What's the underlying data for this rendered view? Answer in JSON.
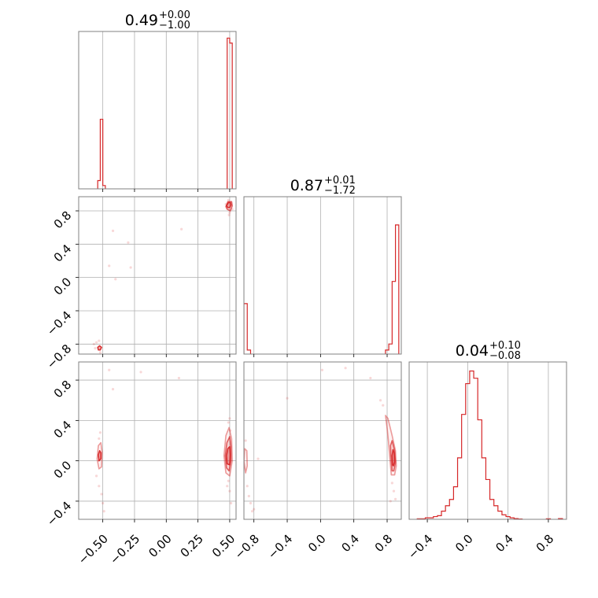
{
  "chart_data": {
    "type": "corner",
    "color": "#d62728",
    "grid": true,
    "parameters": [
      {
        "id": "p0",
        "title": {
          "median": "0.49",
          "plus": "+0.00",
          "minus": "−1.00"
        },
        "range": [
          -0.69,
          0.55
        ],
        "ticks": [
          {
            "value": -0.5,
            "label": "−0.50"
          },
          {
            "value": -0.25,
            "label": "−0.25"
          },
          {
            "value": 0.0,
            "label": "0.00"
          },
          {
            "value": 0.25,
            "label": "0.25"
          },
          {
            "value": 0.5,
            "label": "0.50"
          }
        ],
        "hist": {
          "bins": [
            [
              -0.54,
              -0.52,
              0.05
            ],
            [
              -0.52,
              -0.5,
              0.42
            ],
            [
              -0.5,
              -0.48,
              0.02
            ],
            [
              0.48,
              0.5,
              0.91
            ],
            [
              0.5,
              0.52,
              0.88
            ]
          ],
          "ymax": 0.95
        }
      },
      {
        "id": "p1",
        "title": {
          "median": "0.87",
          "plus": "+0.01",
          "minus": "−1.72"
        },
        "range": [
          -0.92,
          0.97
        ],
        "ticks": [
          {
            "value": -0.8,
            "label": "−0.8"
          },
          {
            "value": -0.4,
            "label": "−0.4"
          },
          {
            "value": 0.0,
            "label": "0.0"
          },
          {
            "value": 0.4,
            "label": "0.4"
          },
          {
            "value": 0.8,
            "label": "0.8"
          }
        ],
        "hist": {
          "bins": [
            [
              -0.92,
              -0.88,
              0.25
            ],
            [
              -0.88,
              -0.84,
              0.02
            ],
            [
              0.78,
              0.82,
              0.02
            ],
            [
              0.82,
              0.86,
              0.05
            ],
            [
              0.86,
              0.9,
              0.36
            ],
            [
              0.9,
              0.94,
              0.64
            ]
          ],
          "ymax": 0.78
        }
      },
      {
        "id": "p2",
        "title": {
          "median": "0.04",
          "plus": "+0.10",
          "minus": "−0.08"
        },
        "range": [
          -0.58,
          0.98
        ],
        "ticks": [
          {
            "value": -0.4,
            "label": "−0.4"
          },
          {
            "value": 0.0,
            "label": "0.0"
          },
          {
            "value": 0.4,
            "label": "0.4"
          },
          {
            "value": 0.8,
            "label": "0.8"
          }
        ],
        "hist": {
          "bins": [
            [
              -0.5,
              -0.46,
              0.003
            ],
            [
              -0.46,
              -0.42,
              0.003
            ],
            [
              -0.42,
              -0.38,
              0.008
            ],
            [
              -0.38,
              -0.34,
              0.008
            ],
            [
              -0.34,
              -0.3,
              0.015
            ],
            [
              -0.3,
              -0.26,
              0.02
            ],
            [
              -0.26,
              -0.22,
              0.045
            ],
            [
              -0.22,
              -0.18,
              0.075
            ],
            [
              -0.18,
              -0.14,
              0.11
            ],
            [
              -0.14,
              -0.1,
              0.18
            ],
            [
              -0.1,
              -0.06,
              0.34
            ],
            [
              -0.06,
              -0.02,
              0.58
            ],
            [
              -0.02,
              0.02,
              0.75
            ],
            [
              0.02,
              0.06,
              0.82
            ],
            [
              0.06,
              0.1,
              0.78
            ],
            [
              0.1,
              0.14,
              0.55
            ],
            [
              0.14,
              0.18,
              0.34
            ],
            [
              0.18,
              0.22,
              0.22
            ],
            [
              0.22,
              0.26,
              0.11
            ],
            [
              0.26,
              0.3,
              0.075
            ],
            [
              0.3,
              0.34,
              0.045
            ],
            [
              0.34,
              0.38,
              0.025
            ],
            [
              0.38,
              0.42,
              0.015
            ],
            [
              0.42,
              0.46,
              0.008
            ],
            [
              0.46,
              0.5,
              0.004
            ],
            [
              0.5,
              0.54,
              0.002
            ],
            [
              0.78,
              0.82,
              0.003
            ],
            [
              0.9,
              0.94,
              0.004
            ]
          ],
          "ymax": 0.87
        }
      }
    ],
    "pairs": [
      {
        "x": 0,
        "y": 1,
        "contours": [
          {
            "level": "inner",
            "points": [
              [
                0.475,
                0.86
              ],
              [
                0.49,
                0.9
              ],
              [
                0.505,
                0.9
              ],
              [
                0.51,
                0.87
              ],
              [
                0.5,
                0.84
              ],
              [
                0.485,
                0.84
              ]
            ]
          },
          {
            "level": "mid",
            "points": [
              [
                0.47,
                0.85
              ],
              [
                0.485,
                0.91
              ],
              [
                0.515,
                0.91
              ],
              [
                0.52,
                0.86
              ],
              [
                0.505,
                0.8
              ],
              [
                0.48,
                0.82
              ]
            ]
          },
          {
            "level": "inner",
            "points": [
              [
                -0.54,
                -0.84
              ],
              [
                -0.525,
                -0.82
              ],
              [
                -0.51,
                -0.84
              ],
              [
                -0.52,
                -0.87
              ],
              [
                -0.535,
                -0.87
              ]
            ]
          }
        ],
        "scatter": [
          [
            0.49,
            0.93
          ],
          [
            0.47,
            0.88
          ],
          [
            0.5,
            0.78
          ],
          [
            0.495,
            0.75
          ],
          [
            0.52,
            0.82
          ],
          [
            -0.55,
            -0.78
          ],
          [
            -0.57,
            -0.8
          ],
          [
            -0.53,
            -0.76
          ],
          [
            -0.56,
            -0.85
          ],
          [
            -0.52,
            -0.9
          ],
          [
            -0.42,
            0.56
          ],
          [
            -0.45,
            0.14
          ],
          [
            -0.3,
            0.42
          ],
          [
            -0.28,
            0.12
          ],
          [
            0.12,
            0.58
          ],
          [
            -0.4,
            -0.02
          ]
        ]
      },
      {
        "x": 0,
        "y": 2,
        "contours": [
          {
            "level": "outer",
            "points": [
              [
                0.47,
                -0.12
              ],
              [
                0.455,
                0.05
              ],
              [
                0.47,
                0.25
              ],
              [
                0.495,
                0.33
              ],
              [
                0.515,
                0.22
              ],
              [
                0.52,
                0.0
              ],
              [
                0.5,
                -0.15
              ]
            ]
          },
          {
            "level": "mid",
            "points": [
              [
                0.475,
                -0.07
              ],
              [
                0.465,
                0.05
              ],
              [
                0.478,
                0.18
              ],
              [
                0.5,
                0.24
              ],
              [
                0.51,
                0.14
              ],
              [
                0.51,
                0.0
              ],
              [
                0.495,
                -0.1
              ]
            ]
          },
          {
            "level": "inner",
            "points": [
              [
                0.48,
                -0.03
              ],
              [
                0.475,
                0.05
              ],
              [
                0.485,
                0.12
              ],
              [
                0.5,
                0.14
              ],
              [
                0.505,
                0.06
              ],
              [
                0.5,
                -0.04
              ]
            ]
          },
          {
            "level": "outer",
            "points": [
              [
                -0.53,
                -0.08
              ],
              [
                -0.545,
                0.02
              ],
              [
                -0.535,
                0.15
              ],
              [
                -0.515,
                0.18
              ],
              [
                -0.505,
                0.08
              ],
              [
                -0.51,
                -0.06
              ]
            ]
          },
          {
            "level": "inner",
            "points": [
              [
                -0.53,
                0.0
              ],
              [
                -0.535,
                0.06
              ],
              [
                -0.525,
                0.1
              ],
              [
                -0.515,
                0.08
              ],
              [
                -0.515,
                0.02
              ]
            ]
          }
        ],
        "scatter": [
          [
            0.5,
            0.42
          ],
          [
            0.49,
            0.38
          ],
          [
            0.505,
            0.3
          ],
          [
            0.49,
            -0.2
          ],
          [
            0.5,
            -0.3
          ],
          [
            0.51,
            -0.42
          ],
          [
            0.48,
            -0.25
          ],
          [
            -0.52,
            0.28
          ],
          [
            -0.53,
            -0.25
          ],
          [
            -0.51,
            -0.33
          ],
          [
            -0.5,
            -0.42
          ],
          [
            -0.49,
            -0.5
          ],
          [
            -0.53,
            0.22
          ],
          [
            -0.45,
            0.9
          ],
          [
            -0.42,
            0.71
          ],
          [
            0.1,
            0.82
          ],
          [
            -0.2,
            0.88
          ],
          [
            -0.55,
            -0.15
          ]
        ]
      },
      {
        "x": 1,
        "y": 2,
        "contours": [
          {
            "level": "outer",
            "points": [
              [
                0.85,
                -0.14
              ],
              [
                0.83,
                0.05
              ],
              [
                0.815,
                0.2
              ],
              [
                0.8,
                0.32
              ],
              [
                0.78,
                0.45
              ],
              [
                0.81,
                0.42
              ],
              [
                0.86,
                0.25
              ],
              [
                0.9,
                0.1
              ],
              [
                0.91,
                -0.05
              ],
              [
                0.89,
                -0.14
              ]
            ]
          },
          {
            "level": "mid",
            "points": [
              [
                0.86,
                -0.1
              ],
              [
                0.845,
                0.05
              ],
              [
                0.84,
                0.15
              ],
              [
                0.86,
                0.2
              ],
              [
                0.89,
                0.1
              ],
              [
                0.9,
                -0.02
              ],
              [
                0.88,
                -0.1
              ]
            ]
          },
          {
            "level": "inner",
            "points": [
              [
                0.865,
                -0.04
              ],
              [
                0.86,
                0.05
              ],
              [
                0.87,
                0.11
              ],
              [
                0.885,
                0.08
              ],
              [
                0.89,
                -0.01
              ],
              [
                0.875,
                -0.05
              ]
            ]
          },
          {
            "level": "outer",
            "points": [
              [
                -0.9,
                -0.12
              ],
              [
                -0.92,
                0.0
              ],
              [
                -0.91,
                0.12
              ],
              [
                -0.885,
                0.1
              ],
              [
                -0.88,
                -0.05
              ]
            ]
          }
        ],
        "scatter": [
          [
            0.72,
            0.6
          ],
          [
            0.75,
            0.55
          ],
          [
            0.6,
            0.82
          ],
          [
            0.86,
            -0.22
          ],
          [
            0.88,
            -0.3
          ],
          [
            0.84,
            -0.4
          ],
          [
            0.9,
            -0.38
          ],
          [
            -0.88,
            -0.25
          ],
          [
            -0.86,
            -0.35
          ],
          [
            -0.84,
            -0.42
          ],
          [
            -0.82,
            -0.5
          ],
          [
            -0.8,
            -0.48
          ],
          [
            -0.9,
            0.2
          ],
          [
            -0.4,
            0.62
          ],
          [
            0.02,
            0.9
          ],
          [
            0.3,
            0.92
          ],
          [
            -0.75,
            0.02
          ]
        ]
      }
    ]
  }
}
